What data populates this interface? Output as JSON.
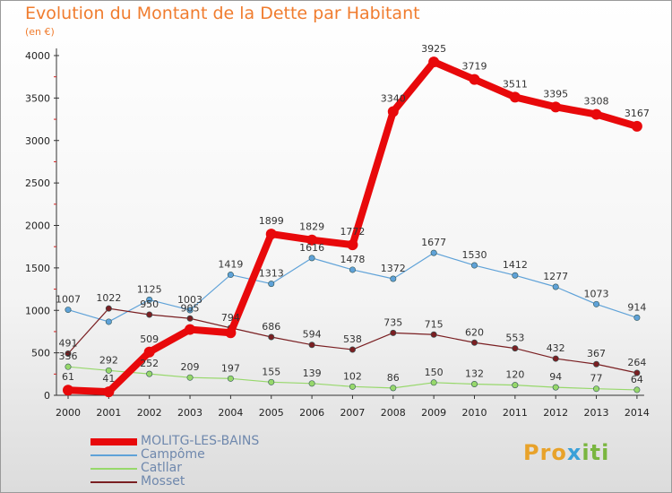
{
  "header": {
    "title": "Evolution du Montant de la Dette par Habitant",
    "unit": "(en €)"
  },
  "logo": {
    "part1": "Pro",
    "part2": "x",
    "part3": "iti"
  },
  "chart_data": {
    "type": "line",
    "title": "Evolution du Montant de la Dette par Habitant",
    "subtitle": "(en €)",
    "x": [
      "2000",
      "2001",
      "2002",
      "2003",
      "2004",
      "2005",
      "2006",
      "2007",
      "2008",
      "2009",
      "2010",
      "2011",
      "2012",
      "2013",
      "2014"
    ],
    "ylim": [
      0,
      4000
    ],
    "yticks": [
      0,
      500,
      1000,
      1500,
      2000,
      2500,
      3000,
      3500,
      4000
    ],
    "grid": false,
    "legend_position": "bottom-left",
    "series": [
      {
        "name": "MOLITG-LES-BAINS",
        "color": "#e8090b",
        "emphasis": true,
        "values": [
          61,
          41,
          509,
          775,
          736,
          1899,
          1829,
          1772,
          3340,
          3925,
          3719,
          3511,
          3395,
          3308,
          3167
        ],
        "labels": [
          "61",
          "41",
          "509",
          "",
          "",
          "1899",
          "1829",
          "1772",
          "3340",
          "3925",
          "3719",
          "3511",
          "3395",
          "3308",
          "3167"
        ]
      },
      {
        "name": "Campôme",
        "color": "#5fa2d8",
        "values": [
          1007,
          866,
          1125,
          1003,
          1419,
          1313,
          1616,
          1478,
          1372,
          1677,
          1530,
          1412,
          1277,
          1073,
          914
        ],
        "labels": [
          "1007",
          "",
          "1125",
          "1003",
          "1419",
          "1313",
          "1616",
          "1478",
          "1372",
          "1677",
          "1530",
          "1412",
          "1277",
          "1073",
          "914"
        ]
      },
      {
        "name": "Catllar",
        "color": "#97d86b",
        "values": [
          336,
          292,
          252,
          209,
          197,
          155,
          139,
          102,
          86,
          150,
          132,
          120,
          94,
          77,
          64
        ],
        "labels": [
          "336",
          "292",
          "252",
          "209",
          "197",
          "155",
          "139",
          "102",
          "86",
          "150",
          "132",
          "120",
          "94",
          "77",
          "64"
        ]
      },
      {
        "name": "Mosset",
        "color": "#7a1f22",
        "values": [
          491,
          1022,
          950,
          905,
          794,
          686,
          594,
          538,
          735,
          715,
          620,
          553,
          432,
          367,
          264
        ],
        "labels": [
          "491",
          "1022",
          "950",
          "905",
          "794",
          "686",
          "594",
          "538",
          "735",
          "715",
          "620",
          "553",
          "432",
          "367",
          "264"
        ]
      }
    ]
  }
}
